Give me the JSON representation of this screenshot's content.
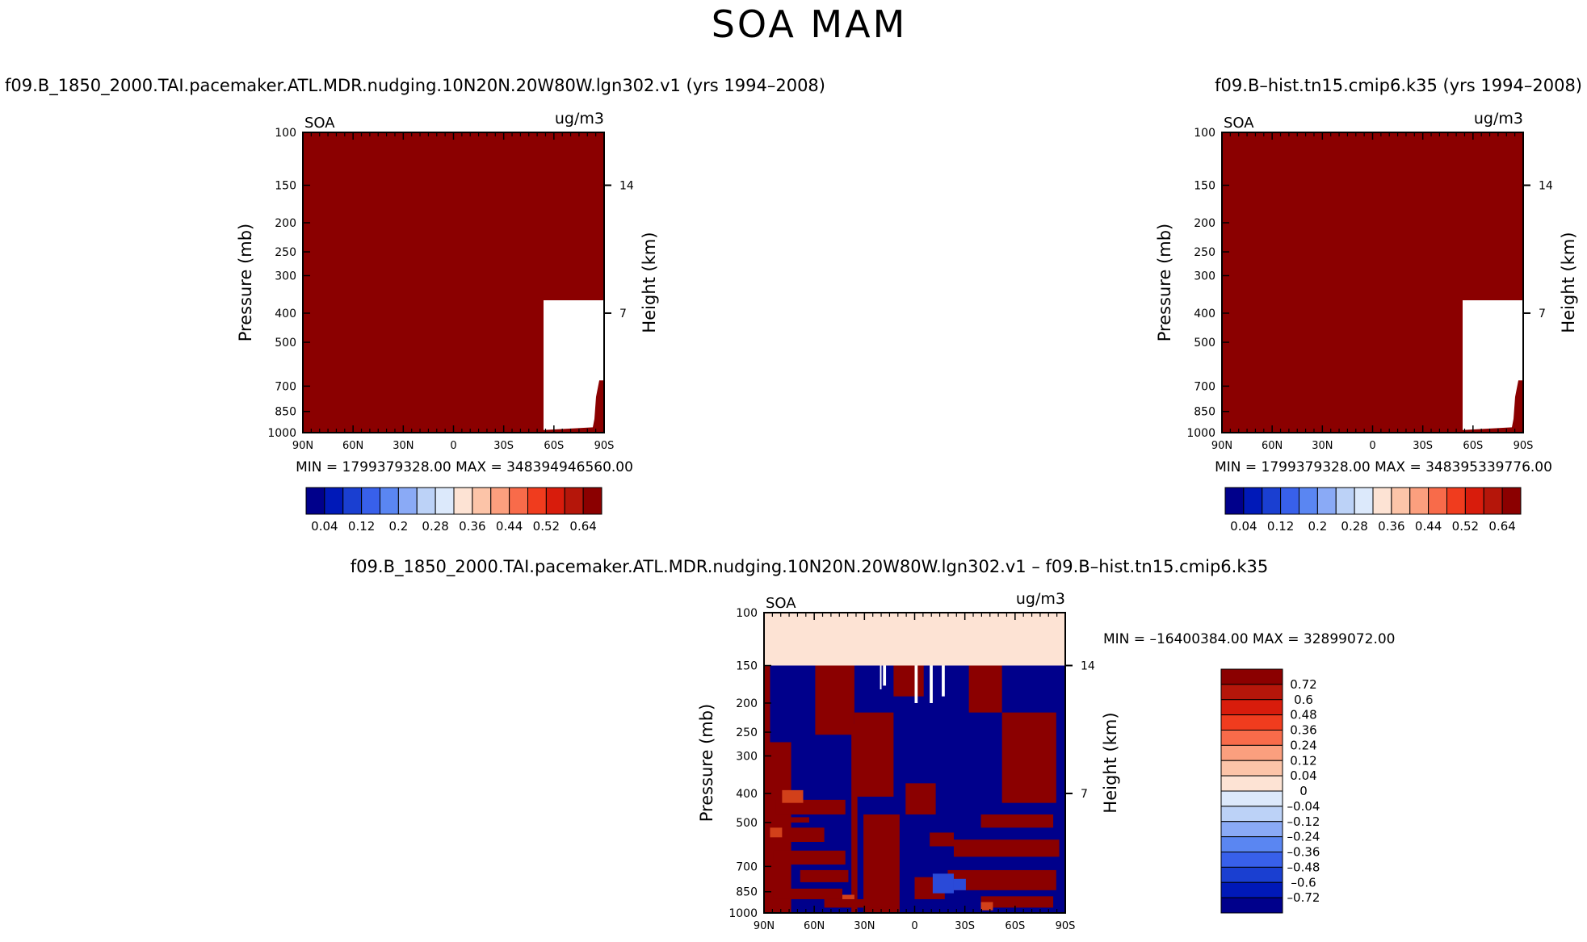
{
  "figure": {
    "title": "SOA MAM"
  },
  "chart_data": [
    {
      "id": "panel1",
      "type": "heatmap",
      "title": "f09.B_1850_2000.TAI.pacemaker.ATL.MDR.nudging.10N20N.20W80W.lgn302.v1 (yrs 1994–2008)",
      "var_label": "SOA",
      "units": "ug/m3",
      "ylabel": "Pressure (mb)",
      "ylabel_right": "Height (km)",
      "pressure_ticks": [
        100,
        150,
        200,
        250,
        300,
        400,
        500,
        700,
        850,
        1000
      ],
      "height_ticks": [
        14,
        7
      ],
      "height_tick_pressure": [
        150,
        400
      ],
      "x_ticks": [
        "90N",
        "60N",
        "30N",
        "0",
        "30S",
        "60S",
        "90S"
      ],
      "ylim": [
        1000,
        100
      ],
      "stats": "MIN = 1799379328.00   MAX = 348394946560.00",
      "fill_level_color": "#8b0000",
      "colorbar": {
        "orientation": "horizontal",
        "labels": [
          "0.04",
          "0.12",
          "0.2",
          "0.28",
          "0.36",
          "0.44",
          "0.52",
          "0.64"
        ],
        "colors": [
          "#00008b",
          "#0019b8",
          "#1a3fd1",
          "#3860ea",
          "#5a86f2",
          "#8aaaf6",
          "#bcd2f7",
          "#dce9fb",
          "#fde3d4",
          "#fcc4a8",
          "#fb9f7e",
          "#f86b4a",
          "#f03c1e",
          "#d81c0c",
          "#b5160a",
          "#8b0000"
        ]
      }
    },
    {
      "id": "panel2",
      "type": "heatmap",
      "title": "f09.B–hist.tn15.cmip6.k35 (yrs 1994–2008)",
      "var_label": "SOA",
      "units": "ug/m3",
      "ylabel": "Pressure (mb)",
      "ylabel_right": "Height (km)",
      "pressure_ticks": [
        100,
        150,
        200,
        250,
        300,
        400,
        500,
        700,
        850,
        1000
      ],
      "height_ticks": [
        14,
        7
      ],
      "height_tick_pressure": [
        150,
        400
      ],
      "x_ticks": [
        "90N",
        "60N",
        "30N",
        "0",
        "30S",
        "60S",
        "90S"
      ],
      "ylim": [
        1000,
        100
      ],
      "stats": "MIN = 1799379328.00   MAX = 348395339776.00",
      "fill_level_color": "#8b0000",
      "colorbar": {
        "orientation": "horizontal",
        "labels": [
          "0.04",
          "0.12",
          "0.2",
          "0.28",
          "0.36",
          "0.44",
          "0.52",
          "0.64"
        ],
        "colors": [
          "#00008b",
          "#0019b8",
          "#1a3fd1",
          "#3860ea",
          "#5a86f2",
          "#8aaaf6",
          "#bcd2f7",
          "#dce9fb",
          "#fde3d4",
          "#fcc4a8",
          "#fb9f7e",
          "#f86b4a",
          "#f03c1e",
          "#d81c0c",
          "#b5160a",
          "#8b0000"
        ]
      }
    },
    {
      "id": "panel3",
      "type": "heatmap",
      "title": "f09.B_1850_2000.TAI.pacemaker.ATL.MDR.nudging.10N20N.20W80W.lgn302.v1  –  f09.B–hist.tn15.cmip6.k35",
      "var_label": "SOA",
      "units": "ug/m3",
      "ylabel": "Pressure (mb)",
      "ylabel_right": "Height (km)",
      "pressure_ticks": [
        100,
        150,
        200,
        250,
        300,
        400,
        500,
        700,
        850,
        1000
      ],
      "height_ticks": [
        14,
        7
      ],
      "height_tick_pressure": [
        150,
        400
      ],
      "x_ticks": [
        "90N",
        "60N",
        "30N",
        "0",
        "30S",
        "60S",
        "90S"
      ],
      "ylim": [
        1000,
        100
      ],
      "stats": "MIN = –16400384.00   MAX = 32899072.00",
      "upper_layer_color": "#fde3d4",
      "colorbar": {
        "orientation": "vertical",
        "labels": [
          "0.72",
          "0.6",
          "0.48",
          "0.36",
          "0.24",
          "0.12",
          "0.04",
          "0",
          "–0.04",
          "–0.12",
          "–0.24",
          "–0.36",
          "–0.48",
          "–0.6",
          "–0.72"
        ],
        "colors": [
          "#8b0000",
          "#b5160a",
          "#d81c0c",
          "#f03c1e",
          "#f86b4a",
          "#fb9f7e",
          "#fcc4a8",
          "#fde3d4",
          "#dce9fb",
          "#bcd2f7",
          "#8aaaf6",
          "#5a86f2",
          "#3860ea",
          "#1a3fd1",
          "#0019b8",
          "#00008b"
        ]
      }
    }
  ]
}
